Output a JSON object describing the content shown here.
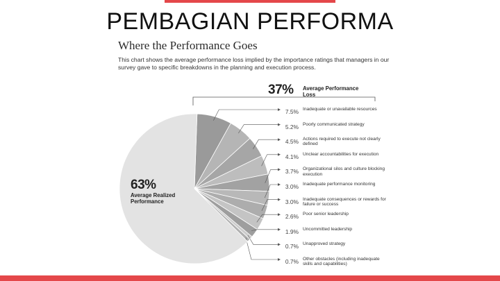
{
  "slide": {
    "title": "PEMBAGIAN PERFORMA"
  },
  "figure": {
    "title": "Where the Performance Goes",
    "subtitle": "This chart shows the average performance loss implied by the importance ratings that managers in our survey gave to specific breakdowns in the planning and execution process."
  },
  "colors": {
    "accent": "#e4474a",
    "realized_slice": "#e3e3e3",
    "loss_slices": [
      "#9a9a9a",
      "#b5b5b5",
      "#a6a6a6",
      "#bdbdbd",
      "#a2a2a2",
      "#b8b8b8",
      "#adadad",
      "#c4c4c4",
      "#9e9e9e",
      "#cccccc",
      "#b0b0b0"
    ]
  },
  "chart_data": {
    "type": "pie",
    "loss_total": {
      "value": "37%",
      "label": "Average Performance Loss"
    },
    "realized": {
      "value": "63%",
      "label": "Average Realized Performance",
      "percent": 63
    },
    "slices": [
      {
        "value": "7.5%",
        "percent": 7.5,
        "label": "Inadequate or unavailable resources"
      },
      {
        "value": "5.2%",
        "percent": 5.2,
        "label": "Poorly communicated strategy"
      },
      {
        "value": "4.5%",
        "percent": 4.5,
        "label": "Actions required to execute not clearly defined"
      },
      {
        "value": "4.1%",
        "percent": 4.1,
        "label": "Unclear accountabilities for execution"
      },
      {
        "value": "3.7%",
        "percent": 3.7,
        "label": "Organizational silos and culture blocking execution"
      },
      {
        "value": "3.0%",
        "percent": 3.0,
        "label": "Inadequate performance monitoring"
      },
      {
        "value": "3.0%",
        "percent": 3.0,
        "label": "Inadequate consequences or rewards for failure or success"
      },
      {
        "value": "2.6%",
        "percent": 2.6,
        "label": "Poor senior leadership"
      },
      {
        "value": "1.9%",
        "percent": 1.9,
        "label": "Uncommitted leadership"
      },
      {
        "value": "0.7%",
        "percent": 0.7,
        "label": "Unapproved strategy"
      },
      {
        "value": "0.7%",
        "percent": 0.7,
        "label": "Other obstacles (including inadequate skills and capabilities)"
      }
    ]
  }
}
